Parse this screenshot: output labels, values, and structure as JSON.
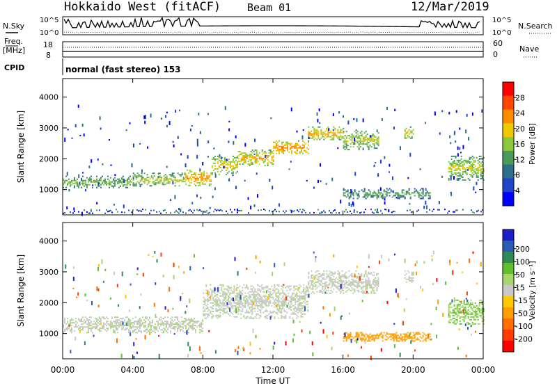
{
  "header": {
    "station": "Hokkaido West (fitACF)",
    "beam": "Beam 01",
    "date": "12/Mar/2019"
  },
  "noise_panel": {
    "left_label": "N.Sky",
    "right_label": "N.Search",
    "left_ticks": [
      "10^5",
      "10^0"
    ],
    "right_ticks": [
      "10^5",
      "10^0"
    ]
  },
  "freq_panel": {
    "left_label_line1": "Freq.",
    "left_label_line2": "[MHz]",
    "right_label": "Nave",
    "left_ticks": [
      "18",
      "8"
    ],
    "right_ticks": [
      "60",
      "0"
    ]
  },
  "cpid_panel": {
    "label": "CPID",
    "mode_text": "normal (fast stereo) 153"
  },
  "axes": {
    "xlabel": "Time UT",
    "ylabel": "Slant Range [km]",
    "xticks": [
      "00:00",
      "04:00",
      "08:00",
      "12:00",
      "16:00",
      "20:00",
      "00:00"
    ],
    "yticks": [
      "1000",
      "2000",
      "3000",
      "4000"
    ]
  },
  "power_colorbar": {
    "label": "Power [dB]",
    "ticks": [
      "4",
      "8",
      "12",
      "16",
      "20",
      "24",
      "28"
    ],
    "colors": [
      "#0000ff",
      "#1e46c8",
      "#2d6e8c",
      "#4c9a5a",
      "#8cc83c",
      "#f0c800",
      "#ff8c00",
      "#ff4600",
      "#ff0000"
    ]
  },
  "velocity_colorbar": {
    "label": "Velocity [m s⁻¹]",
    "ticks": [
      "200",
      "100",
      "50",
      "15",
      "-15",
      "-50",
      "-100",
      "-200"
    ],
    "colors": [
      "#1e1ec8",
      "#2d5ab4",
      "#2e8b57",
      "#5fbf2f",
      "#a5d66a",
      "#c8c8c8",
      "#ffc800",
      "#ffa000",
      "#ff7000",
      "#ff3c00",
      "#ff0000"
    ]
  },
  "chart_data": {
    "type": "heatmap",
    "x_range_hours": [
      0,
      24
    ],
    "y_range_km": [
      180,
      4600
    ],
    "grid": false,
    "echo_bands_power": [
      {
        "t0": 0.0,
        "t1": 4.0,
        "r0": 1050,
        "r1": 1450,
        "level": 12
      },
      {
        "t0": 4.0,
        "t1": 7.0,
        "r0": 1100,
        "r1": 1550,
        "level": 14
      },
      {
        "t0": 7.0,
        "t1": 8.5,
        "r0": 1150,
        "r1": 1650,
        "level": 20
      },
      {
        "t0": 8.5,
        "t1": 10.0,
        "r0": 1500,
        "r1": 2100,
        "level": 16
      },
      {
        "t0": 10.0,
        "t1": 12.0,
        "r0": 1800,
        "r1": 2300,
        "level": 18
      },
      {
        "t0": 12.0,
        "t1": 14.0,
        "r0": 2150,
        "r1": 2600,
        "level": 20
      },
      {
        "t0": 14.0,
        "t1": 16.0,
        "r0": 2600,
        "r1": 3050,
        "level": 18
      },
      {
        "t0": 16.0,
        "t1": 18.0,
        "r0": 2300,
        "r1": 2950,
        "level": 14
      },
      {
        "t0": 19.5,
        "t1": 20.0,
        "r0": 2650,
        "r1": 3050,
        "level": 16
      },
      {
        "t0": 16.0,
        "t1": 21.0,
        "r0": 700,
        "r1": 1050,
        "level": 10
      },
      {
        "t0": 22.0,
        "t1": 24.0,
        "r0": 1300,
        "r1": 2100,
        "level": 14
      }
    ],
    "echo_bands_velocity": [
      {
        "t0": 0.0,
        "t1": 8.0,
        "r0": 1050,
        "r1": 1550,
        "vel": 0
      },
      {
        "t0": 8.0,
        "t1": 14.0,
        "r0": 1500,
        "r1": 2600,
        "vel": 0
      },
      {
        "t0": 14.0,
        "t1": 18.0,
        "r0": 2300,
        "r1": 3050,
        "vel": 0
      },
      {
        "t0": 19.5,
        "t1": 20.0,
        "r0": 2650,
        "r1": 3050,
        "vel": 0
      },
      {
        "t0": 16.0,
        "t1": 21.0,
        "r0": 750,
        "r1": 1050,
        "vel": -50
      },
      {
        "t0": 22.0,
        "t1": 24.0,
        "r0": 1300,
        "r1": 2100,
        "vel": 15
      }
    ]
  }
}
